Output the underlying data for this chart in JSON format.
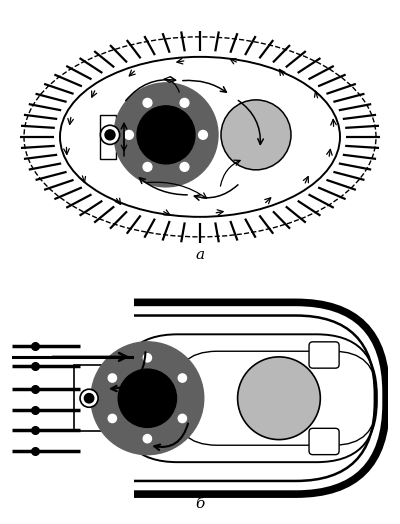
{
  "bg_color": "#ffffff",
  "line_color": "#000000",
  "dark_gray": "#606060",
  "light_gray": "#b8b8b8",
  "label_a": "а",
  "label_b": "б",
  "fig_width": 4.0,
  "fig_height": 5.24,
  "dpi": 100
}
